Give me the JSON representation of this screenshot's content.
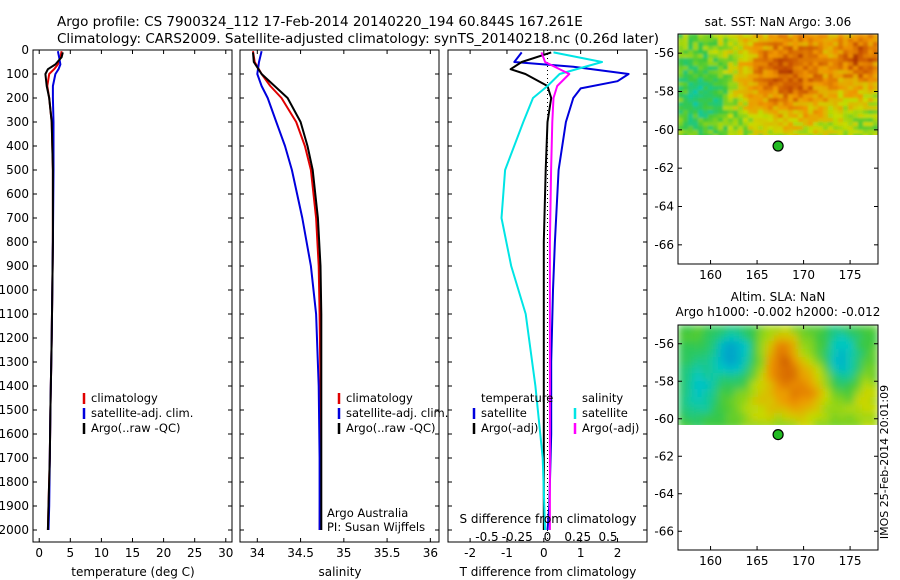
{
  "header": {
    "line1": "Argo profile: CS 7900324_112 17-Feb-2014 20140220_194 60.844S 167.261E",
    "line2": "Climatology: CARS2009. Satellite-adjusted climatology: synTS_20140218.nc (0.26d later)"
  },
  "colors": {
    "climatology": "#e00000",
    "satellite": "#0000dd",
    "argo": "#000000",
    "salinity_sat": "#00e5e5",
    "salinity_argo": "#ff00ff",
    "argo_marker": "#22bb22"
  },
  "chart_data": [
    {
      "type": "line",
      "id": "temperature-profile",
      "xlabel": "temperature (deg C)",
      "xlim": [
        -1,
        31
      ],
      "xticks": [
        0,
        5,
        10,
        15,
        20,
        25,
        30
      ],
      "ylim": [
        0,
        2050
      ],
      "yticks": [
        0,
        100,
        200,
        300,
        400,
        500,
        600,
        700,
        800,
        900,
        1000,
        1100,
        1200,
        1300,
        1400,
        1500,
        1600,
        1700,
        1800,
        1900,
        2000
      ],
      "y_reversed": true,
      "legend": [
        "climatology",
        "satellite-adj. clim.",
        "Argo(..raw -QC)"
      ],
      "series": [
        {
          "name": "climatology",
          "depth": [
            5,
            30,
            60,
            80,
            100,
            150,
            200,
            300,
            500,
            800,
            1000,
            1200,
            1500,
            1700,
            1900,
            2000
          ],
          "values": [
            3.6,
            3.4,
            3.0,
            2.4,
            1.6,
            1.3,
            1.6,
            2.0,
            2.2,
            2.2,
            2.1,
            2.0,
            1.8,
            1.7,
            1.5,
            1.4
          ]
        },
        {
          "name": "satellite-adj. clim.",
          "depth": [
            5,
            30,
            60,
            80,
            100,
            150,
            200,
            300,
            500,
            800,
            1000,
            1200,
            1500,
            1700,
            1900,
            2000
          ],
          "values": [
            3.0,
            3.2,
            3.4,
            3.1,
            2.6,
            2.2,
            2.2,
            2.3,
            2.3,
            2.2,
            2.1,
            2.0,
            1.8,
            1.7,
            1.6,
            1.5
          ]
        },
        {
          "name": "Argo(..raw -QC)",
          "depth": [
            10,
            30,
            60,
            80,
            100,
            150,
            200,
            300,
            500,
            800,
            1000,
            1200,
            1500,
            1700,
            1900,
            2000
          ],
          "values": [
            3.8,
            3.6,
            2.6,
            1.4,
            1.0,
            1.2,
            1.6,
            2.0,
            2.2,
            2.2,
            2.1,
            2.0,
            1.8,
            1.7,
            1.5,
            1.4
          ]
        }
      ]
    },
    {
      "type": "line",
      "id": "salinity-profile",
      "xlabel": "salinity",
      "xlim": [
        33.8,
        36.1
      ],
      "xticks": [
        34,
        34.5,
        35,
        35.5,
        36
      ],
      "ylim": [
        0,
        2050
      ],
      "y_reversed": true,
      "legend": [
        "climatology",
        "satellite-adj. clim.",
        "Argo(..raw -QC)"
      ],
      "annotation": [
        "Argo Australia",
        "PI: Susan Wijffels"
      ],
      "series": [
        {
          "name": "climatology",
          "depth": [
            5,
            50,
            100,
            150,
            200,
            300,
            400,
            500,
            700,
            900,
            1100,
            1400,
            1700,
            2000
          ],
          "values": [
            33.95,
            33.97,
            34.05,
            34.15,
            34.28,
            34.45,
            34.55,
            34.62,
            34.68,
            34.71,
            34.72,
            34.73,
            34.73,
            34.72
          ]
        },
        {
          "name": "satellite-adj. clim.",
          "depth": [
            5,
            50,
            100,
            150,
            200,
            300,
            400,
            500,
            700,
            900,
            1100,
            1400,
            1700,
            2000
          ],
          "values": [
            34.05,
            34.02,
            34.0,
            34.05,
            34.12,
            34.22,
            34.32,
            34.4,
            34.52,
            34.62,
            34.68,
            34.71,
            34.72,
            34.72
          ]
        },
        {
          "name": "Argo(..raw -QC)",
          "depth": [
            10,
            50,
            100,
            150,
            200,
            300,
            400,
            500,
            700,
            900,
            1100,
            1400,
            1700,
            2000
          ],
          "values": [
            33.95,
            33.96,
            34.05,
            34.2,
            34.35,
            34.5,
            34.58,
            34.64,
            34.7,
            34.73,
            34.74,
            34.74,
            34.74,
            34.74
          ]
        }
      ]
    },
    {
      "type": "line",
      "id": "difference-profile",
      "xlabel": "T difference from climatology",
      "xlabel_top": "S difference from climatology",
      "xlim": [
        -2.6,
        2.8
      ],
      "xticks": [
        -2,
        -1,
        0,
        1,
        2
      ],
      "sticks": [
        -0.5,
        -0.25,
        0,
        0.25,
        0.5
      ],
      "sticklabels": [
        "-0.5",
        "-0.25",
        "0",
        "0.25",
        "0.5"
      ],
      "ylim": [
        0,
        2050
      ],
      "y_reversed": true,
      "legend_headers": [
        "temperature",
        "salinity"
      ],
      "legend_left": [
        "satellite",
        "Argo(-adj)"
      ],
      "legend_right": [
        "satellite",
        "Argo(-adj)"
      ],
      "series": [
        {
          "name": "temperature satellite",
          "depth": [
            10,
            50,
            70,
            100,
            130,
            160,
            200,
            300,
            500,
            800,
            1000,
            1300,
            1600,
            1900,
            2000
          ],
          "values": [
            -0.6,
            -0.8,
            0.8,
            2.3,
            2.0,
            1.0,
            0.8,
            0.6,
            0.4,
            0.3,
            0.25,
            0.2,
            0.2,
            0.15,
            0.1
          ]
        },
        {
          "name": "temperature Argo(-adj)",
          "depth": [
            10,
            50,
            80,
            100,
            150,
            200,
            300,
            500,
            800,
            1000,
            1300,
            1600,
            1900,
            2000
          ],
          "values": [
            0.2,
            -0.6,
            -0.9,
            -0.5,
            0.1,
            0.2,
            0.1,
            0.05,
            0.0,
            0.0,
            0.0,
            0.0,
            0.0,
            0.0
          ]
        },
        {
          "name": "salinity satellite",
          "depth": [
            10,
            50,
            100,
            150,
            200,
            300,
            500,
            700,
            900,
            1100,
            1400,
            1700,
            2000
          ],
          "values": [
            0.05,
            0.45,
            0.1,
            0.0,
            -0.12,
            -0.2,
            -0.35,
            -0.38,
            -0.3,
            -0.18,
            -0.1,
            -0.04,
            -0.02
          ]
        },
        {
          "name": "salinity Argo(-adj)",
          "depth": [
            10,
            50,
            100,
            150,
            200,
            300,
            500,
            800,
            1000,
            1300,
            1600,
            1900,
            2000
          ],
          "values": [
            -0.05,
            -0.02,
            0.18,
            0.08,
            0.05,
            0.04,
            0.03,
            0.02,
            0.02,
            0.02,
            0.02,
            0.02,
            0.02
          ]
        }
      ]
    },
    {
      "type": "heatmap",
      "id": "sst-map",
      "title": "sat. SST: NaN Argo: 3.06",
      "xlim": [
        156.5,
        178
      ],
      "ylim": [
        -67,
        -55
      ],
      "xticks": [
        160,
        165,
        170,
        175
      ],
      "yticks": [
        -56,
        -58,
        -60,
        -62,
        -64,
        -66
      ],
      "data_extent_lat": [
        -60.2,
        -55
      ],
      "argo_position": [
        167.261,
        -60.844
      ]
    },
    {
      "type": "heatmap",
      "id": "sla-map",
      "title": "Altim. SLA: NaN",
      "subtitle": "Argo h1000: -0.002 h2000: -0.012",
      "xlim": [
        156.5,
        178
      ],
      "ylim": [
        -67,
        -55
      ],
      "xticks": [
        160,
        165,
        170,
        175
      ],
      "yticks": [
        -56,
        -58,
        -60,
        -62,
        -64,
        -66
      ],
      "data_extent_lat": [
        -60.2,
        -55
      ],
      "argo_position": [
        167.261,
        -60.844
      ]
    }
  ],
  "footer": {
    "timestamp": "IMOS 25-Feb-2014 20:01:09"
  }
}
